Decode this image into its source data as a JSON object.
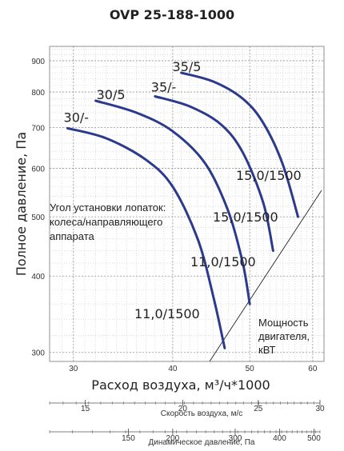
{
  "chart_data": {
    "type": "line",
    "title": "OVP 25-188-1000",
    "xlabel": "Расход воздуха, м³/ч*1000",
    "ylabel": "Полное давление, Па",
    "xscale": "log",
    "yscale": "log",
    "xlim": [
      28,
      62
    ],
    "ylim": [
      290,
      950
    ],
    "xticks": [
      30,
      40,
      50,
      60
    ],
    "yticks": [
      300,
      400,
      500,
      600,
      700,
      800,
      900
    ],
    "grid": true,
    "series": [
      {
        "name": "30/-",
        "power_label": "11,0/1500",
        "color": "#2b3a8c",
        "x": [
          29.5,
          33,
          37,
          40,
          43,
          45,
          46.5
        ],
        "y": [
          698,
          672,
          620,
          560,
          460,
          370,
          305
        ]
      },
      {
        "name": "30/5",
        "power_label": "11,0/1500",
        "color": "#2b3a8c",
        "x": [
          32,
          36,
          40,
          44,
          47,
          49,
          50
        ],
        "y": [
          774,
          740,
          690,
          610,
          510,
          420,
          360
        ]
      },
      {
        "name": "35/-",
        "power_label": "15,0/1500",
        "color": "#2b3a8c",
        "x": [
          38,
          42,
          46,
          49,
          52,
          53.5
        ],
        "y": [
          787,
          758,
          708,
          637,
          527,
          440
        ]
      },
      {
        "name": "35/5",
        "power_label": "15,0/1500",
        "color": "#2b3a8c",
        "x": [
          41,
          45,
          49,
          52,
          55,
          57.5
        ],
        "y": [
          860,
          832,
          780,
          712,
          610,
          500
        ]
      }
    ],
    "annotations": {
      "blade_angle_note": [
        "Угол установки лопаток:",
        "колеса/направляющего",
        "аппарата"
      ],
      "motor_power_note": [
        "Мощность",
        "двигателя,",
        "кВТ"
      ]
    },
    "secondary_axes": [
      {
        "label": "Скорость воздуха, м/с",
        "ticks": [
          15,
          20,
          25,
          30
        ]
      },
      {
        "label": "Динамическое давление, Па",
        "ticks": [
          150,
          200,
          300,
          400,
          500
        ]
      }
    ]
  }
}
